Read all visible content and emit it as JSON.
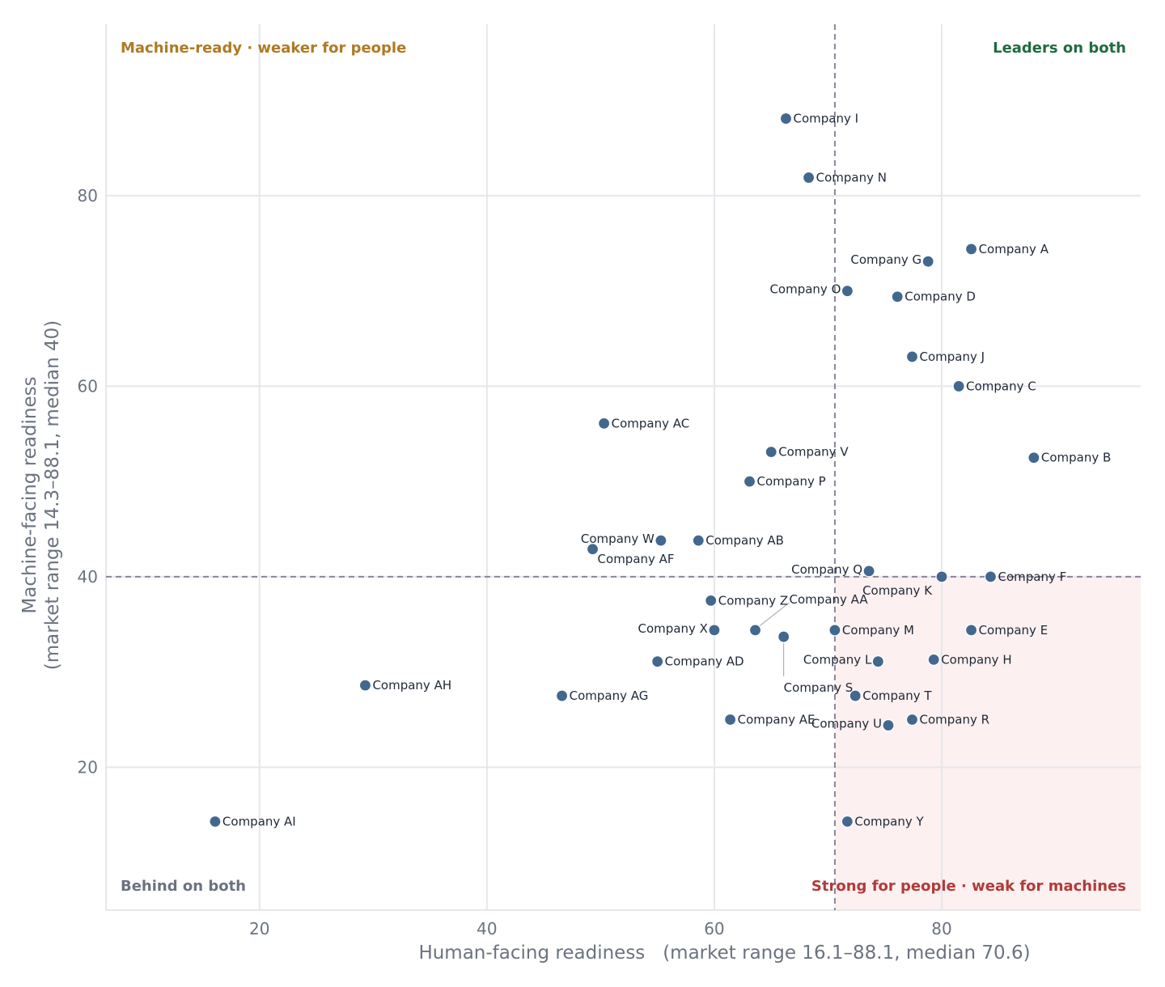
{
  "chart_data": {
    "type": "scatter",
    "xlabel": "Human-facing readiness   (market range 16.1–88.1, median 70.6)",
    "ylabel_lines": [
      "Machine-facing readiness",
      "(market range 14.3–88.1, median 40)"
    ],
    "xlim": [
      6.5,
      97.5
    ],
    "ylim": [
      5,
      98
    ],
    "x_ticks": [
      20,
      40,
      60,
      80
    ],
    "y_ticks": [
      20,
      40,
      60,
      80
    ],
    "grid": true,
    "median_x": 70.6,
    "median_y": 40,
    "highlight_region": "bottom-right",
    "colors": {
      "point": "#426890",
      "point_edge": "#ffffff",
      "grid": "#e5e7eb",
      "median_line": "#8b8599",
      "highlight_fill": "#fcf0f0",
      "tick_text": "#6b7280",
      "label_text": "#1f2937"
    },
    "quadrant_labels": [
      {
        "text": "Machine-ready · weaker for people",
        "position": "top-left",
        "color": "#b07a22"
      },
      {
        "text": "Leaders on both",
        "position": "top-right",
        "color": "#1f6b40"
      },
      {
        "text": "Behind on both",
        "position": "bottom-left",
        "color": "#6b7280"
      },
      {
        "text": "Strong for people · weak for machines",
        "position": "bottom-right",
        "color": "#b23a3a"
      }
    ],
    "points": [
      {
        "name": "Company A",
        "x": 82.6,
        "y": 74.4
      },
      {
        "name": "Company B",
        "x": 88.1,
        "y": 52.5
      },
      {
        "name": "Company C",
        "x": 81.5,
        "y": 60.0
      },
      {
        "name": "Company D",
        "x": 76.1,
        "y": 69.4
      },
      {
        "name": "Company E",
        "x": 82.6,
        "y": 34.4
      },
      {
        "name": "Company F",
        "x": 84.3,
        "y": 40.0
      },
      {
        "name": "Company G",
        "x": 78.8,
        "y": 73.1
      },
      {
        "name": "Company H",
        "x": 79.3,
        "y": 31.3
      },
      {
        "name": "Company I",
        "x": 66.3,
        "y": 88.1
      },
      {
        "name": "Company J",
        "x": 77.4,
        "y": 63.1
      },
      {
        "name": "Company K",
        "x": 80.0,
        "y": 40.0
      },
      {
        "name": "Company L",
        "x": 74.4,
        "y": 31.1
      },
      {
        "name": "Company M",
        "x": 70.6,
        "y": 34.4
      },
      {
        "name": "Company N",
        "x": 68.3,
        "y": 81.9
      },
      {
        "name": "Company O",
        "x": 71.7,
        "y": 70.0
      },
      {
        "name": "Company P",
        "x": 63.1,
        "y": 50.0
      },
      {
        "name": "Company Q",
        "x": 73.6,
        "y": 40.6
      },
      {
        "name": "Company R",
        "x": 77.4,
        "y": 25.0
      },
      {
        "name": "Company S",
        "x": 66.1,
        "y": 33.7
      },
      {
        "name": "Company T",
        "x": 72.4,
        "y": 27.5
      },
      {
        "name": "Company U",
        "x": 75.3,
        "y": 24.4
      },
      {
        "name": "Company V",
        "x": 65.0,
        "y": 53.1
      },
      {
        "name": "Company W",
        "x": 55.3,
        "y": 43.8
      },
      {
        "name": "Company X",
        "x": 60.0,
        "y": 34.4
      },
      {
        "name": "Company Y",
        "x": 71.7,
        "y": 14.3
      },
      {
        "name": "Company Z",
        "x": 59.7,
        "y": 37.5
      },
      {
        "name": "Company AA",
        "x": 63.6,
        "y": 34.4
      },
      {
        "name": "Company AB",
        "x": 58.6,
        "y": 43.8
      },
      {
        "name": "Company AC",
        "x": 50.3,
        "y": 56.1
      },
      {
        "name": "Company AD",
        "x": 55.0,
        "y": 31.1
      },
      {
        "name": "Company AE",
        "x": 61.4,
        "y": 25.0
      },
      {
        "name": "Company AF",
        "x": 49.3,
        "y": 42.9
      },
      {
        "name": "Company AG",
        "x": 46.6,
        "y": 27.5
      },
      {
        "name": "Company AH",
        "x": 29.3,
        "y": 28.6
      },
      {
        "name": "Company AI",
        "x": 16.1,
        "y": 14.3
      }
    ]
  }
}
